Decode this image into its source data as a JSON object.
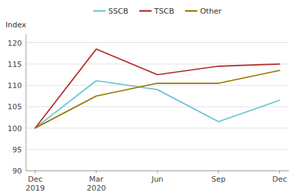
{
  "chart_data": {
    "type": "line",
    "y_label": "Index",
    "categories": [
      "Dec\n2019",
      "Mar\n2020",
      "Jun",
      "Sep",
      "Dec"
    ],
    "series": [
      {
        "name": "SSCB",
        "color": "#6DC8D8",
        "values": [
          100,
          111.1,
          109.0,
          101.5,
          106.5
        ]
      },
      {
        "name": "TSCB",
        "color": "#B83232",
        "values": [
          100,
          118.5,
          112.5,
          114.5,
          115.0
        ]
      },
      {
        "name": "Other",
        "color": "#9A7D0A",
        "values": [
          100,
          107.5,
          110.5,
          110.5,
          113.5
        ]
      }
    ],
    "ylim": [
      90,
      122
    ],
    "yticks": [
      90,
      95,
      100,
      105,
      110,
      115,
      120
    ],
    "grid": true,
    "legend": "top"
  }
}
